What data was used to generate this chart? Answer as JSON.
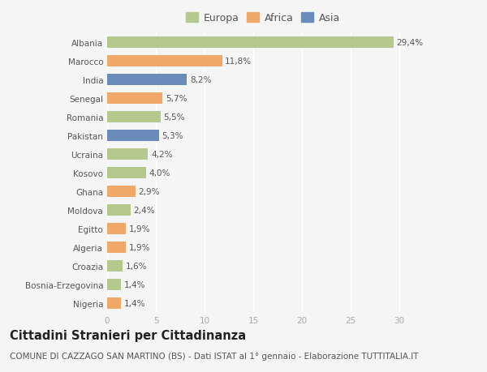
{
  "countries": [
    "Albania",
    "Marocco",
    "India",
    "Senegal",
    "Romania",
    "Pakistan",
    "Ucraina",
    "Kosovo",
    "Ghana",
    "Moldova",
    "Egitto",
    "Algeria",
    "Croazia",
    "Bosnia-Erzegovina",
    "Nigeria"
  ],
  "values": [
    29.4,
    11.8,
    8.2,
    5.7,
    5.5,
    5.3,
    4.2,
    4.0,
    2.9,
    2.4,
    1.9,
    1.9,
    1.6,
    1.4,
    1.4
  ],
  "labels": [
    "29,4%",
    "11,8%",
    "8,2%",
    "5,7%",
    "5,5%",
    "5,3%",
    "4,2%",
    "4,0%",
    "2,9%",
    "2,4%",
    "1,9%",
    "1,9%",
    "1,6%",
    "1,4%",
    "1,4%"
  ],
  "continents": [
    "Europa",
    "Africa",
    "Asia",
    "Africa",
    "Europa",
    "Asia",
    "Europa",
    "Europa",
    "Africa",
    "Europa",
    "Africa",
    "Africa",
    "Europa",
    "Europa",
    "Africa"
  ],
  "colors": {
    "Europa": "#b5c98e",
    "Africa": "#f0a868",
    "Asia": "#6b8cba"
  },
  "title": "Cittadini Stranieri per Cittadinanza",
  "subtitle": "COMUNE DI CAZZAGO SAN MARTINO (BS) - Dati ISTAT al 1° gennaio - Elaborazione TUTTITALIA.IT",
  "xlim": [
    0,
    32
  ],
  "xticks": [
    0,
    5,
    10,
    15,
    20,
    25,
    30
  ],
  "background_color": "#f5f5f5",
  "bar_height": 0.6,
  "title_fontsize": 10.5,
  "subtitle_fontsize": 7.5,
  "label_fontsize": 7.5,
  "tick_fontsize": 7.5,
  "legend_fontsize": 9
}
